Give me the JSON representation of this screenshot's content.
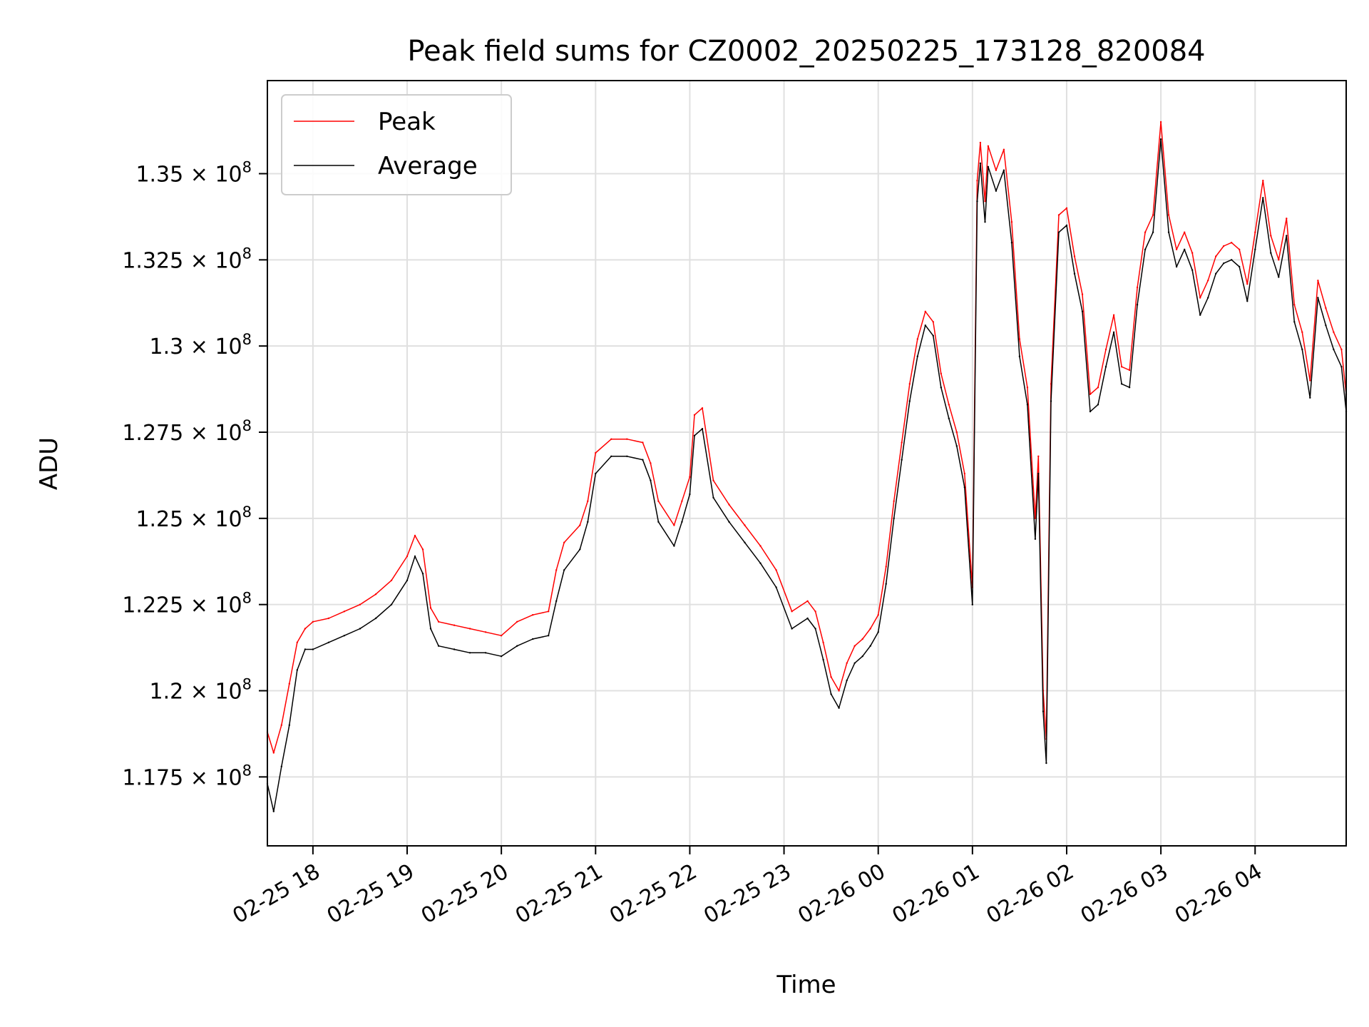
{
  "chart_data": {
    "type": "line",
    "title": "Peak field sums for CZ0002_20250225_173128_820084",
    "xlabel": "Time",
    "ylabel": "ADU",
    "xlim": [
      "2025-02-25 17:31",
      "2025-02-26 04:58"
    ],
    "ylim": [
      115500000,
      137700000
    ],
    "grid": true,
    "legend_position": "upper-left",
    "x_tick_labels": [
      "02-25 18",
      "02-25 19",
      "02-25 20",
      "02-25 21",
      "02-25 22",
      "02-25 23",
      "02-26 00",
      "02-26 01",
      "02-26 02",
      "02-26 03",
      "02-26 04"
    ],
    "x_tick_values": [
      "2025-02-25 18:00",
      "2025-02-25 19:00",
      "2025-02-25 20:00",
      "2025-02-25 21:00",
      "2025-02-25 22:00",
      "2025-02-25 23:00",
      "2025-02-26 00:00",
      "2025-02-26 01:00",
      "2025-02-26 02:00",
      "2025-02-26 03:00",
      "2025-02-26 04:00"
    ],
    "y_ticks": [
      {
        "value": 117500000,
        "mantissa": "1.175",
        "exponent": "8"
      },
      {
        "value": 120000000,
        "mantissa": "1.2",
        "exponent": "8"
      },
      {
        "value": 122500000,
        "mantissa": "1.225",
        "exponent": "8"
      },
      {
        "value": 125000000,
        "mantissa": "1.25",
        "exponent": "8"
      },
      {
        "value": 127500000,
        "mantissa": "1.275",
        "exponent": "8"
      },
      {
        "value": 130000000,
        "mantissa": "1.3",
        "exponent": "8"
      },
      {
        "value": 132500000,
        "mantissa": "1.325",
        "exponent": "8"
      },
      {
        "value": 135000000,
        "mantissa": "1.35",
        "exponent": "8"
      }
    ],
    "series": [
      {
        "name": "Peak",
        "color": "#ff0000",
        "x": [
          "2025-02-25 17:31",
          "2025-02-25 17:35",
          "2025-02-25 17:40",
          "2025-02-25 17:45",
          "2025-02-25 17:50",
          "2025-02-25 17:55",
          "2025-02-25 18:00",
          "2025-02-25 18:10",
          "2025-02-25 18:20",
          "2025-02-25 18:30",
          "2025-02-25 18:40",
          "2025-02-25 18:50",
          "2025-02-25 19:00",
          "2025-02-25 19:05",
          "2025-02-25 19:10",
          "2025-02-25 19:15",
          "2025-02-25 19:20",
          "2025-02-25 19:30",
          "2025-02-25 19:40",
          "2025-02-25 19:50",
          "2025-02-25 20:00",
          "2025-02-25 20:10",
          "2025-02-25 20:20",
          "2025-02-25 20:30",
          "2025-02-25 20:35",
          "2025-02-25 20:40",
          "2025-02-25 20:50",
          "2025-02-25 20:55",
          "2025-02-25 21:00",
          "2025-02-25 21:10",
          "2025-02-25 21:20",
          "2025-02-25 21:30",
          "2025-02-25 21:35",
          "2025-02-25 21:40",
          "2025-02-25 21:50",
          "2025-02-25 21:55",
          "2025-02-25 22:00",
          "2025-02-25 22:03",
          "2025-02-25 22:08",
          "2025-02-25 22:15",
          "2025-02-25 22:25",
          "2025-02-25 22:35",
          "2025-02-25 22:45",
          "2025-02-25 22:55",
          "2025-02-25 23:05",
          "2025-02-25 23:15",
          "2025-02-25 23:20",
          "2025-02-25 23:25",
          "2025-02-25 23:30",
          "2025-02-25 23:35",
          "2025-02-25 23:40",
          "2025-02-25 23:45",
          "2025-02-25 23:50",
          "2025-02-25 23:55",
          "2025-02-26 00:00",
          "2025-02-26 00:05",
          "2025-02-26 00:10",
          "2025-02-26 00:15",
          "2025-02-26 00:20",
          "2025-02-26 00:25",
          "2025-02-26 00:30",
          "2025-02-26 00:35",
          "2025-02-26 00:40",
          "2025-02-26 00:45",
          "2025-02-26 00:50",
          "2025-02-26 00:55",
          "2025-02-26 01:00",
          "2025-02-26 01:03",
          "2025-02-26 01:05",
          "2025-02-26 01:08",
          "2025-02-26 01:10",
          "2025-02-26 01:15",
          "2025-02-26 01:20",
          "2025-02-26 01:25",
          "2025-02-26 01:30",
          "2025-02-26 01:35",
          "2025-02-26 01:40",
          "2025-02-26 01:42",
          "2025-02-26 01:45",
          "2025-02-26 01:47",
          "2025-02-26 01:50",
          "2025-02-26 01:55",
          "2025-02-26 02:00",
          "2025-02-26 02:05",
          "2025-02-26 02:10",
          "2025-02-26 02:15",
          "2025-02-26 02:20",
          "2025-02-26 02:25",
          "2025-02-26 02:30",
          "2025-02-26 02:35",
          "2025-02-26 02:40",
          "2025-02-26 02:45",
          "2025-02-26 02:50",
          "2025-02-26 02:55",
          "2025-02-26 03:00",
          "2025-02-26 03:05",
          "2025-02-26 03:10",
          "2025-02-26 03:15",
          "2025-02-26 03:20",
          "2025-02-26 03:25",
          "2025-02-26 03:30",
          "2025-02-26 03:35",
          "2025-02-26 03:40",
          "2025-02-26 03:45",
          "2025-02-26 03:50",
          "2025-02-26 03:55",
          "2025-02-26 04:00",
          "2025-02-26 04:05",
          "2025-02-26 04:10",
          "2025-02-26 04:15",
          "2025-02-26 04:20",
          "2025-02-26 04:25",
          "2025-02-26 04:30",
          "2025-02-26 04:35",
          "2025-02-26 04:40",
          "2025-02-26 04:45",
          "2025-02-26 04:50",
          "2025-02-26 04:55",
          "2025-02-26 04:58"
        ],
        "values": [
          118800000,
          118200000,
          119000000,
          120200000,
          121400000,
          121800000,
          122000000,
          122100000,
          122300000,
          122500000,
          122800000,
          123200000,
          123900000,
          124500000,
          124100000,
          122400000,
          122000000,
          121900000,
          121800000,
          121700000,
          121600000,
          122000000,
          122200000,
          122300000,
          123500000,
          124300000,
          124800000,
          125500000,
          126900000,
          127300000,
          127300000,
          127200000,
          126600000,
          125500000,
          124800000,
          125500000,
          126200000,
          128000000,
          128200000,
          126100000,
          125400000,
          124800000,
          124200000,
          123500000,
          122300000,
          122600000,
          122300000,
          121400000,
          120400000,
          120000000,
          120800000,
          121300000,
          121500000,
          121800000,
          122200000,
          123600000,
          125500000,
          127200000,
          128900000,
          130200000,
          131000000,
          130700000,
          129200000,
          128300000,
          127500000,
          126300000,
          123000000,
          134800000,
          135900000,
          134200000,
          135800000,
          135100000,
          135700000,
          133600000,
          130200000,
          128800000,
          125000000,
          126800000,
          120000000,
          118600000,
          128900000,
          133800000,
          134000000,
          132600000,
          131500000,
          128600000,
          128800000,
          129900000,
          130900000,
          129400000,
          129300000,
          131700000,
          133300000,
          133800000,
          136500000,
          133800000,
          132800000,
          133300000,
          132700000,
          131400000,
          131900000,
          132600000,
          132900000,
          133000000,
          132800000,
          131800000,
          133300000,
          134800000,
          133200000,
          132500000,
          133700000,
          131200000,
          130400000,
          129000000,
          131900000,
          131100000,
          130400000,
          129900000,
          128600000
        ]
      },
      {
        "name": "Average",
        "color": "#000000",
        "x": [
          "2025-02-25 17:31",
          "2025-02-25 17:35",
          "2025-02-25 17:40",
          "2025-02-25 17:45",
          "2025-02-25 17:50",
          "2025-02-25 17:55",
          "2025-02-25 18:00",
          "2025-02-25 18:10",
          "2025-02-25 18:20",
          "2025-02-25 18:30",
          "2025-02-25 18:40",
          "2025-02-25 18:50",
          "2025-02-25 19:00",
          "2025-02-25 19:05",
          "2025-02-25 19:10",
          "2025-02-25 19:15",
          "2025-02-25 19:20",
          "2025-02-25 19:30",
          "2025-02-25 19:40",
          "2025-02-25 19:50",
          "2025-02-25 20:00",
          "2025-02-25 20:10",
          "2025-02-25 20:20",
          "2025-02-25 20:30",
          "2025-02-25 20:35",
          "2025-02-25 20:40",
          "2025-02-25 20:50",
          "2025-02-25 20:55",
          "2025-02-25 21:00",
          "2025-02-25 21:10",
          "2025-02-25 21:20",
          "2025-02-25 21:30",
          "2025-02-25 21:35",
          "2025-02-25 21:40",
          "2025-02-25 21:50",
          "2025-02-25 21:55",
          "2025-02-25 22:00",
          "2025-02-25 22:03",
          "2025-02-25 22:08",
          "2025-02-25 22:15",
          "2025-02-25 22:25",
          "2025-02-25 22:35",
          "2025-02-25 22:45",
          "2025-02-25 22:55",
          "2025-02-25 23:05",
          "2025-02-25 23:15",
          "2025-02-25 23:20",
          "2025-02-25 23:25",
          "2025-02-25 23:30",
          "2025-02-25 23:35",
          "2025-02-25 23:40",
          "2025-02-25 23:45",
          "2025-02-25 23:50",
          "2025-02-25 23:55",
          "2025-02-26 00:00",
          "2025-02-26 00:05",
          "2025-02-26 00:10",
          "2025-02-26 00:15",
          "2025-02-26 00:20",
          "2025-02-26 00:25",
          "2025-02-26 00:30",
          "2025-02-26 00:35",
          "2025-02-26 00:40",
          "2025-02-26 00:45",
          "2025-02-26 00:50",
          "2025-02-26 00:55",
          "2025-02-26 01:00",
          "2025-02-26 01:03",
          "2025-02-26 01:05",
          "2025-02-26 01:08",
          "2025-02-26 01:10",
          "2025-02-26 01:15",
          "2025-02-26 01:20",
          "2025-02-26 01:25",
          "2025-02-26 01:30",
          "2025-02-26 01:35",
          "2025-02-26 01:40",
          "2025-02-26 01:42",
          "2025-02-26 01:45",
          "2025-02-26 01:47",
          "2025-02-26 01:50",
          "2025-02-26 01:55",
          "2025-02-26 02:00",
          "2025-02-26 02:05",
          "2025-02-26 02:10",
          "2025-02-26 02:15",
          "2025-02-26 02:20",
          "2025-02-26 02:25",
          "2025-02-26 02:30",
          "2025-02-26 02:35",
          "2025-02-26 02:40",
          "2025-02-26 02:45",
          "2025-02-26 02:50",
          "2025-02-26 02:55",
          "2025-02-26 03:00",
          "2025-02-26 03:05",
          "2025-02-26 03:10",
          "2025-02-26 03:15",
          "2025-02-26 03:20",
          "2025-02-26 03:25",
          "2025-02-26 03:30",
          "2025-02-26 03:35",
          "2025-02-26 03:40",
          "2025-02-26 03:45",
          "2025-02-26 03:50",
          "2025-02-26 03:55",
          "2025-02-26 04:00",
          "2025-02-26 04:05",
          "2025-02-26 04:10",
          "2025-02-26 04:15",
          "2025-02-26 04:20",
          "2025-02-26 04:25",
          "2025-02-26 04:30",
          "2025-02-26 04:35",
          "2025-02-26 04:40",
          "2025-02-26 04:45",
          "2025-02-26 04:50",
          "2025-02-26 04:55",
          "2025-02-26 04:58"
        ],
        "values": [
          117300000,
          116500000,
          117800000,
          119000000,
          120600000,
          121200000,
          121200000,
          121400000,
          121600000,
          121800000,
          122100000,
          122500000,
          123200000,
          123900000,
          123400000,
          121800000,
          121300000,
          121200000,
          121100000,
          121100000,
          121000000,
          121300000,
          121500000,
          121600000,
          122600000,
          123500000,
          124100000,
          124900000,
          126300000,
          126800000,
          126800000,
          126700000,
          126100000,
          124900000,
          124200000,
          124900000,
          125700000,
          127400000,
          127600000,
          125600000,
          124900000,
          124300000,
          123700000,
          123000000,
          121800000,
          122100000,
          121800000,
          120900000,
          119900000,
          119500000,
          120300000,
          120800000,
          121000000,
          121300000,
          121700000,
          123100000,
          125000000,
          126700000,
          128400000,
          129700000,
          130600000,
          130300000,
          128800000,
          127900000,
          127100000,
          125900000,
          122500000,
          134200000,
          135300000,
          133600000,
          135200000,
          134500000,
          135100000,
          133000000,
          129700000,
          128300000,
          124400000,
          126300000,
          119400000,
          117900000,
          128400000,
          133300000,
          133500000,
          132100000,
          131000000,
          128100000,
          128300000,
          129400000,
          130400000,
          128900000,
          128800000,
          131200000,
          132800000,
          133300000,
          136000000,
          133300000,
          132300000,
          132800000,
          132200000,
          130900000,
          131400000,
          132100000,
          132400000,
          132500000,
          132300000,
          131300000,
          132800000,
          134300000,
          132700000,
          132000000,
          133200000,
          130700000,
          129900000,
          128500000,
          131400000,
          130600000,
          129900000,
          129400000,
          128100000
        ]
      }
    ]
  }
}
